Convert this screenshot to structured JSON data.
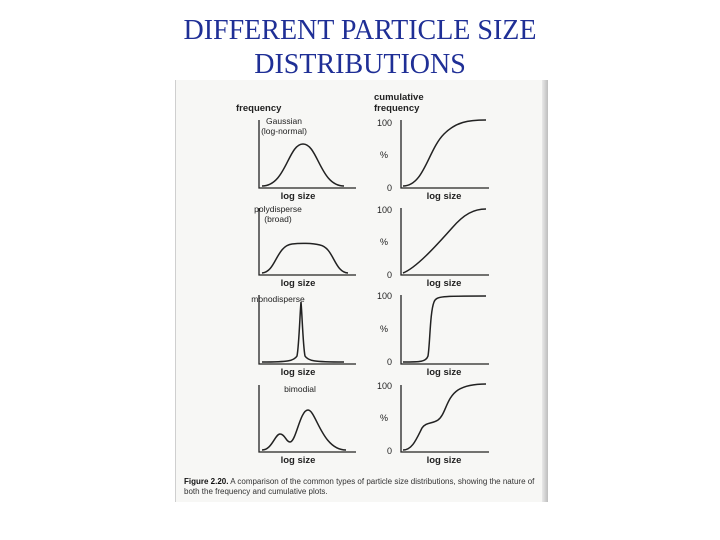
{
  "title": {
    "line1": "DIFFERENT PARTICLE SIZE",
    "line2": "DISTRIBUTIONS"
  },
  "figure": {
    "left_header": "frequency",
    "right_header_line1": "cumulative",
    "right_header_line2": "frequency",
    "x_label": "log size",
    "y_top": "100",
    "y_mid": "%",
    "y_bottom": "0",
    "rows": [
      {
        "name_line1": "Gaussian",
        "name_line2": "(log-normal)"
      },
      {
        "name_line1": "polydisperse",
        "name_line2": "(broad)"
      },
      {
        "name_line1": "monodisperse",
        "name_line2": ""
      },
      {
        "name_line1": "bimodial",
        "name_line2": ""
      }
    ],
    "caption_label": "Figure 2.20.",
    "caption_text": "A comparison of the common types of particle size distributions, showing the nature of both the frequency and cumulative plots."
  }
}
